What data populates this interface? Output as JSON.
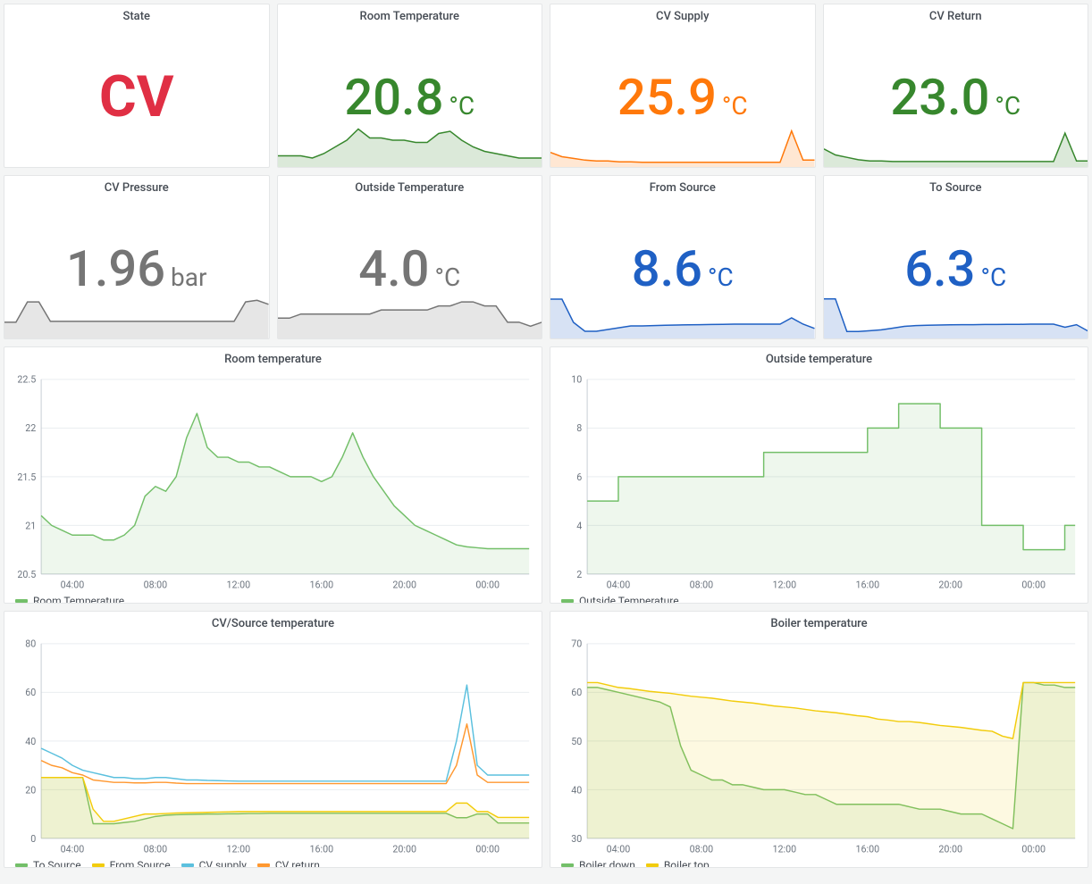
{
  "colors": {
    "red": "#e02f44",
    "green": "#37872d",
    "orange": "#ff780a",
    "gray": "#757575",
    "blue": "#1f60c4",
    "green_line": "#73bf69",
    "orange_line": "#ff9830",
    "blue_line": "#8ab8ff",
    "yellow_line": "#f2cc0c",
    "cyan_line": "#5bc0de"
  },
  "x_labels": [
    "04:00",
    "08:00",
    "12:00",
    "16:00",
    "20:00",
    "00:00"
  ],
  "stats": {
    "state": {
      "title": "State",
      "value": "CV",
      "color_key": "red",
      "is_state": true
    },
    "room": {
      "title": "Room Temperature",
      "value": "20.8",
      "unit": "°C",
      "color_key": "green",
      "spark": [
        20.9,
        20.9,
        20.9,
        20.8,
        21.0,
        21.3,
        21.6,
        22.1,
        21.7,
        21.7,
        21.6,
        21.6,
        21.5,
        21.5,
        21.9,
        22.0,
        21.6,
        21.3,
        21.1,
        21.0,
        20.9,
        20.8,
        20.8,
        20.8
      ],
      "spark_ymin": 20.4,
      "spark_ymax": 22.4
    },
    "cvsupply": {
      "title": "CV Supply",
      "value": "25.9",
      "unit": "°C",
      "color_key": "orange",
      "spark": [
        35,
        30,
        28,
        26,
        25,
        25,
        24,
        24,
        23.5,
        23.5,
        23.5,
        23.5,
        23.5,
        23.5,
        23.5,
        23.5,
        23.5,
        23.5,
        23.5,
        23.5,
        23.5,
        60,
        26,
        26
      ],
      "spark_ymin": 18,
      "spark_ymax": 70
    },
    "cvreturn": {
      "title": "CV Return",
      "value": "23.0",
      "unit": "°C",
      "color_key": "green",
      "spark": [
        33,
        28,
        26,
        24,
        23,
        23,
        22.5,
        22.5,
        22.5,
        22.5,
        22.5,
        22.5,
        22.5,
        22.5,
        22.5,
        22.5,
        22.5,
        22.5,
        22.5,
        22.5,
        22.5,
        46,
        23,
        23
      ],
      "spark_ymin": 18,
      "spark_ymax": 55
    },
    "pressure": {
      "title": "CV Pressure",
      "value": "1.96",
      "unit": "bar",
      "color_key": "gray",
      "spark": [
        1.75,
        1.75,
        2.0,
        2.0,
        1.76,
        1.76,
        1.76,
        1.76,
        1.76,
        1.76,
        1.76,
        1.76,
        1.76,
        1.76,
        1.76,
        1.76,
        1.76,
        1.76,
        1.76,
        1.76,
        1.76,
        2.0,
        2.02,
        1.97
      ],
      "spark_ymin": 1.55,
      "spark_ymax": 2.1
    },
    "outside": {
      "title": "Outside Temperature",
      "value": "4.0",
      "unit": "°C",
      "color_key": "gray",
      "spark": [
        5,
        5,
        6,
        6,
        6,
        6,
        6,
        6,
        6,
        7,
        7,
        7,
        7,
        7,
        8,
        8,
        9,
        9,
        8,
        8,
        4,
        4,
        3,
        4
      ],
      "spark_ymin": 0,
      "spark_ymax": 11
    },
    "fromsrc": {
      "title": "From Source",
      "value": "8.6",
      "unit": "°C",
      "color_key": "blue",
      "spark": [
        25,
        25,
        12,
        7,
        7,
        8,
        9,
        10,
        10,
        10.2,
        10.4,
        10.5,
        10.6,
        10.7,
        10.8,
        10.9,
        11,
        11,
        11,
        11,
        11,
        14.5,
        11,
        8.6
      ],
      "spark_ymin": 3,
      "spark_ymax": 28
    },
    "tosrc": {
      "title": "To Source",
      "value": "6.3",
      "unit": "°C",
      "color_key": "blue",
      "spark": [
        25,
        25,
        6,
        6,
        6.5,
        7,
        8,
        9,
        9.5,
        9.7,
        9.8,
        9.9,
        10,
        10,
        10.1,
        10.1,
        10.2,
        10.2,
        10.3,
        10.3,
        10.3,
        8.5,
        10,
        6.3
      ],
      "spark_ymin": 2,
      "spark_ymax": 28
    }
  },
  "charts": {
    "room": {
      "title": "Room temperature",
      "ymin": 20.5,
      "ymax": 22.5,
      "ystep": 0.5,
      "legend": [
        {
          "label": "Room Temperature",
          "color_key": "green_line"
        }
      ],
      "series": [
        {
          "color_key": "green_line",
          "fill": true,
          "y": [
            21.1,
            21.0,
            20.95,
            20.9,
            20.9,
            20.9,
            20.85,
            20.85,
            20.9,
            21.0,
            21.3,
            21.4,
            21.35,
            21.5,
            21.9,
            22.15,
            21.8,
            21.7,
            21.7,
            21.65,
            21.65,
            21.6,
            21.6,
            21.55,
            21.5,
            21.5,
            21.5,
            21.45,
            21.5,
            21.7,
            21.95,
            21.7,
            21.5,
            21.35,
            21.2,
            21.1,
            21.0,
            20.95,
            20.9,
            20.85,
            20.8,
            20.78,
            20.77,
            20.76,
            20.76,
            20.76,
            20.76,
            20.76
          ]
        }
      ]
    },
    "outside": {
      "title": "Outside temperature",
      "ymin": 2,
      "ymax": 10,
      "ystep": 2,
      "legend": [
        {
          "label": "Outside Temperature",
          "color_key": "green_line"
        }
      ],
      "series": [
        {
          "color_key": "green_line",
          "fill": true,
          "step": true,
          "y": [
            5,
            5,
            5,
            6,
            6,
            6,
            6,
            6,
            6,
            6,
            6,
            6,
            6,
            6,
            6,
            6,
            6,
            7,
            7,
            7,
            7,
            7,
            7,
            7,
            7,
            7,
            7,
            8,
            8,
            8,
            9,
            9,
            9,
            9,
            8,
            8,
            8,
            8,
            4,
            4,
            4,
            4,
            3,
            3,
            3,
            3,
            4,
            4
          ]
        }
      ]
    },
    "cvsrc": {
      "title": "CV/Source temperature",
      "ymin": 0,
      "ymax": 80,
      "ystep": 20,
      "legend": [
        {
          "label": "To Source",
          "color_key": "green_line"
        },
        {
          "label": "From Source",
          "color_key": "yellow_line"
        },
        {
          "label": "CV supply",
          "color_key": "cyan_line"
        },
        {
          "label": "CV return",
          "color_key": "orange_line"
        }
      ],
      "series": [
        {
          "color_key": "green_line",
          "fill": true,
          "y": [
            25,
            25,
            25,
            25,
            25,
            6,
            6,
            6,
            6.5,
            7,
            8,
            9,
            9.5,
            9.7,
            9.8,
            9.9,
            10,
            10,
            10.1,
            10.1,
            10.2,
            10.2,
            10.3,
            10.3,
            10.3,
            10.3,
            10.3,
            10.3,
            10.3,
            10.3,
            10.3,
            10.3,
            10.3,
            10.3,
            10.3,
            10.3,
            10.3,
            10.3,
            10.3,
            10.3,
            8.5,
            8.5,
            10,
            10,
            6.3,
            6.3,
            6.3,
            6.3
          ]
        },
        {
          "color_key": "yellow_line",
          "fill": true,
          "y": [
            25,
            25,
            25,
            25,
            25,
            12,
            7,
            7,
            8,
            9,
            10,
            10,
            10.2,
            10.4,
            10.5,
            10.6,
            10.7,
            10.8,
            10.9,
            11,
            11,
            11,
            11,
            11,
            11,
            11,
            11,
            11,
            11,
            11,
            11,
            11,
            11,
            11,
            11,
            11,
            11,
            11,
            11,
            11,
            14.5,
            14.5,
            11,
            11,
            8.6,
            8.6,
            8.6,
            8.6
          ]
        },
        {
          "color_key": "cyan_line",
          "fill": false,
          "y": [
            37,
            35,
            33,
            30,
            28,
            27,
            26,
            25,
            25,
            24.5,
            24.5,
            25,
            25,
            24.5,
            24,
            24,
            23.8,
            23.7,
            23.6,
            23.5,
            23.5,
            23.5,
            23.5,
            23.5,
            23.5,
            23.5,
            23.5,
            23.5,
            23.5,
            23.5,
            23.5,
            23.5,
            23.5,
            23.5,
            23.5,
            23.5,
            23.5,
            23.5,
            23.5,
            23.5,
            40,
            63,
            30,
            26,
            26,
            26,
            26,
            26
          ]
        },
        {
          "color_key": "orange_line",
          "fill": false,
          "y": [
            32,
            30,
            29,
            27,
            26,
            24,
            23.5,
            23,
            23,
            22.8,
            22.8,
            23,
            23,
            22.7,
            22.5,
            22.5,
            22.5,
            22.5,
            22.5,
            22.5,
            22.5,
            22.5,
            22.5,
            22.5,
            22.5,
            22.5,
            22.5,
            22.5,
            22.5,
            22.5,
            22.5,
            22.5,
            22.5,
            22.5,
            22.5,
            22.5,
            22.5,
            22.5,
            22.5,
            22.5,
            30,
            47,
            26,
            23,
            23,
            23,
            23,
            23
          ]
        }
      ]
    },
    "boiler": {
      "title": "Boiler temperature",
      "ymin": 30,
      "ymax": 70,
      "ystep": 10,
      "legend": [
        {
          "label": "Boiler down",
          "color_key": "green_line"
        },
        {
          "label": "Boiler top",
          "color_key": "yellow_line"
        }
      ],
      "series": [
        {
          "color_key": "green_line",
          "fill": true,
          "y": [
            61,
            61,
            60.5,
            60,
            59.5,
            59,
            58.5,
            58,
            57,
            49,
            44,
            43,
            42,
            42,
            41,
            41,
            40.5,
            40,
            40,
            40,
            39.5,
            39,
            39,
            38,
            37,
            37,
            37,
            37,
            37,
            37,
            37,
            36.5,
            36,
            36,
            36,
            35.5,
            35,
            35,
            35,
            34,
            33,
            32,
            62,
            62,
            61.5,
            61.5,
            61,
            61
          ]
        },
        {
          "color_key": "yellow_line",
          "fill": true,
          "y": [
            62,
            62,
            61.5,
            61,
            60.8,
            60.5,
            60.2,
            60,
            59.8,
            59.5,
            59.2,
            59,
            58.8,
            58.5,
            58.2,
            58,
            57.8,
            57.5,
            57.2,
            57,
            56.8,
            56.5,
            56.2,
            56,
            55.8,
            55.5,
            55.2,
            55,
            54.5,
            54.3,
            54,
            54,
            53.8,
            53.5,
            53.2,
            53,
            52.8,
            52.5,
            52.2,
            52,
            51,
            50.5,
            62,
            62,
            62,
            62,
            62,
            62
          ]
        }
      ]
    }
  }
}
